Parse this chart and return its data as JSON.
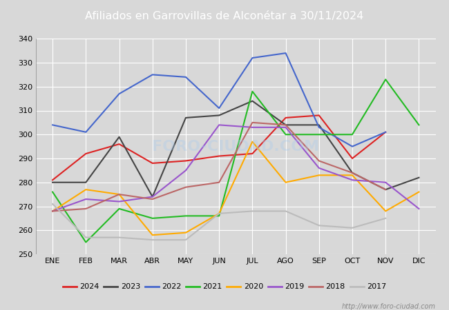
{
  "title": "Afiliados en Garrovillas de Alconétar a 30/11/2024",
  "title_color": "#ffffff",
  "title_bg_color": "#5b7fc4",
  "months": [
    "ENE",
    "FEB",
    "MAR",
    "ABR",
    "MAY",
    "JUN",
    "JUL",
    "AGO",
    "SEP",
    "OCT",
    "NOV",
    "DIC"
  ],
  "ylim": [
    250,
    340
  ],
  "yticks": [
    250,
    260,
    270,
    280,
    290,
    300,
    310,
    320,
    330,
    340
  ],
  "series": {
    "2024": {
      "color": "#dd2222",
      "data": [
        281,
        292,
        296,
        288,
        289,
        291,
        292,
        307,
        308,
        290,
        301,
        null
      ]
    },
    "2023": {
      "color": "#444444",
      "data": [
        280,
        280,
        299,
        274,
        307,
        308,
        314,
        304,
        304,
        284,
        277,
        282
      ]
    },
    "2022": {
      "color": "#4466cc",
      "data": [
        304,
        301,
        317,
        325,
        324,
        311,
        332,
        334,
        303,
        295,
        301,
        null
      ]
    },
    "2021": {
      "color": "#22bb22",
      "data": [
        276,
        255,
        269,
        265,
        266,
        266,
        318,
        300,
        300,
        300,
        323,
        304
      ]
    },
    "2020": {
      "color": "#ffaa00",
      "data": [
        268,
        277,
        275,
        258,
        259,
        267,
        297,
        280,
        283,
        283,
        268,
        276
      ]
    },
    "2019": {
      "color": "#9955cc",
      "data": [
        268,
        273,
        272,
        274,
        285,
        304,
        303,
        303,
        286,
        281,
        280,
        269
      ]
    },
    "2018": {
      "color": "#bb6666",
      "data": [
        268,
        269,
        275,
        273,
        278,
        280,
        305,
        304,
        289,
        284,
        277,
        null
      ]
    },
    "2017": {
      "color": "#bbbbbb",
      "data": [
        271,
        257,
        257,
        256,
        256,
        267,
        268,
        268,
        262,
        261,
        265,
        null
      ]
    }
  },
  "legend_order": [
    "2024",
    "2023",
    "2022",
    "2021",
    "2020",
    "2019",
    "2018",
    "2017"
  ],
  "watermark": "http://www.foro-ciudad.com",
  "fig_bg_color": "#d8d8d8",
  "plot_bg_color": "#d8d8d8",
  "grid_color": "#ffffff"
}
